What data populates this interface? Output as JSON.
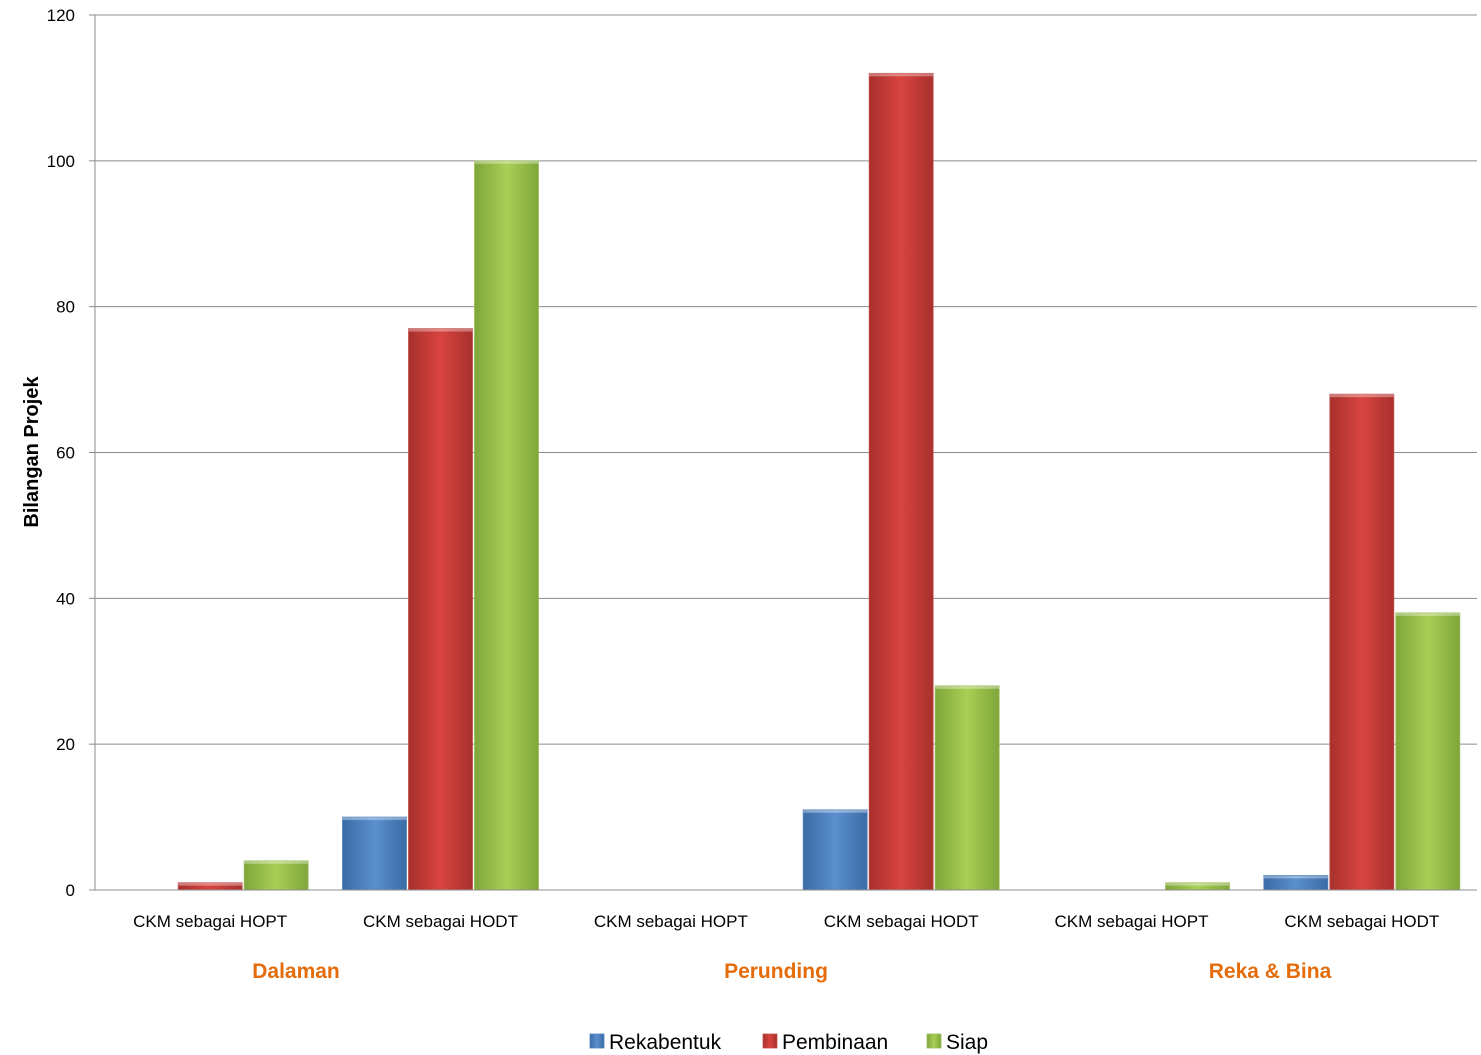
{
  "chart_data": {
    "type": "bar",
    "title": "",
    "xlabel": "",
    "ylabel": "Bilangan Projek",
    "ylim": [
      0,
      120
    ],
    "yticks": [
      0,
      20,
      40,
      60,
      80,
      100,
      120
    ],
    "grid": true,
    "legend_position": "bottom",
    "group_label_color": "#e46c0a",
    "groups": [
      "Dalaman",
      "Perunding",
      "Reka & Bina"
    ],
    "categories": [
      "CKM sebagai HOPT",
      "CKM sebagai HODT",
      "CKM sebagai HOPT",
      "CKM sebagai HODT",
      "CKM sebagai HOPT",
      "CKM sebagai HODT"
    ],
    "series": [
      {
        "name": "Rekabentuk",
        "color": "#4f81bd",
        "values": [
          0,
          10,
          0,
          11,
          0,
          2
        ]
      },
      {
        "name": "Pembinaan",
        "color": "#c0504d",
        "values": [
          1,
          77,
          0,
          112,
          0,
          68
        ]
      },
      {
        "name": "Siap",
        "color": "#9bbb59",
        "values": [
          4,
          100,
          0,
          28,
          1,
          38
        ]
      }
    ]
  }
}
